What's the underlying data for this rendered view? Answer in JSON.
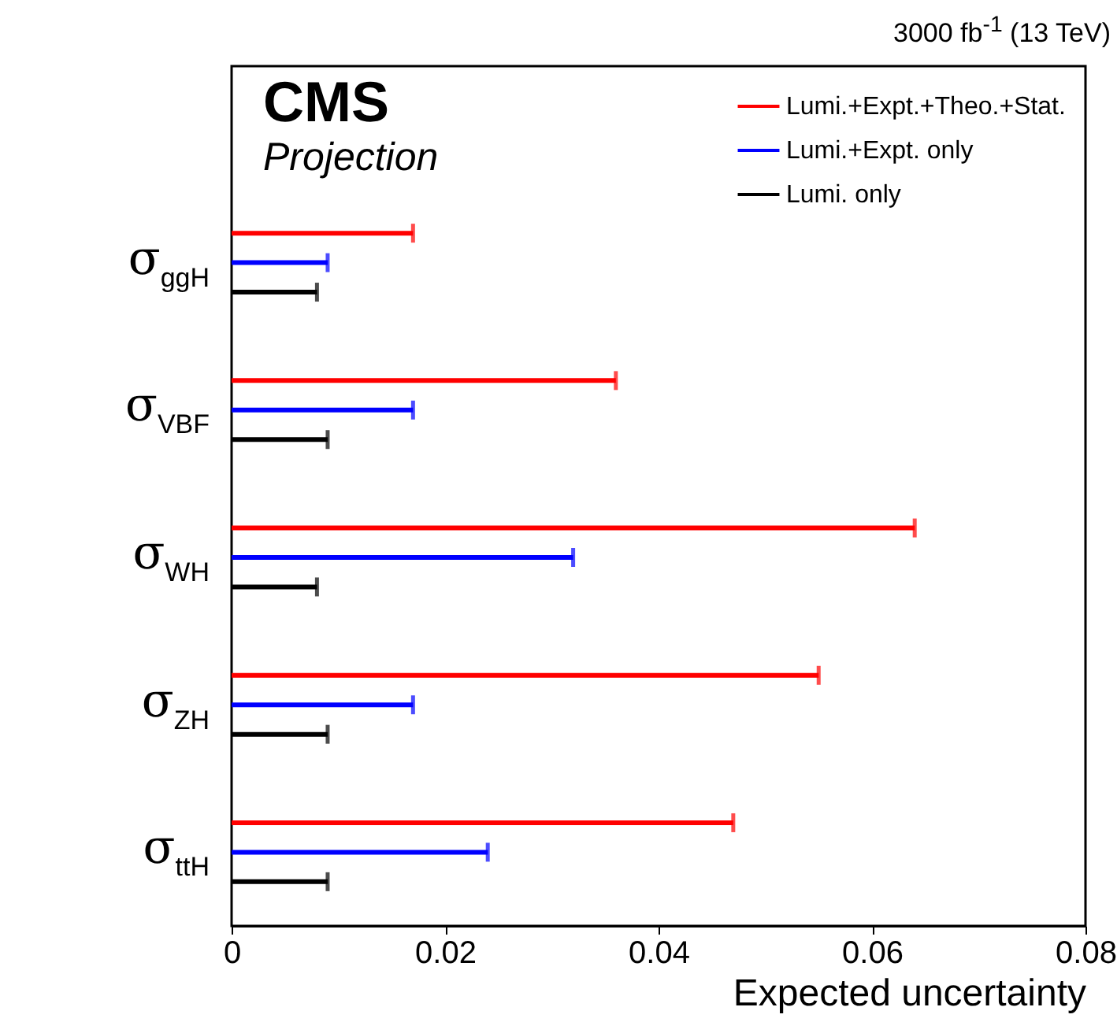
{
  "chart_data": {
    "type": "bar",
    "orientation": "horizontal",
    "title": "3000 fb$^{-1}$ (13 TeV)",
    "xlabel": "Expected uncertainty",
    "annotations": [
      "CMS",
      "Projection"
    ],
    "categories": [
      "σ$_{ggH}$",
      "σ$_{VBF}$",
      "σ$_{WH}$",
      "σ$_{ZH}$",
      "σ$_{ttH}$"
    ],
    "series": [
      {
        "name": "Lumi.+Expt.+Theo.+Stat.",
        "color": "#ff0000",
        "values": [
          0.017,
          0.036,
          0.064,
          0.055,
          0.047
        ]
      },
      {
        "name": "Lumi.+Expt. only",
        "color": "#0000ff",
        "values": [
          0.009,
          0.017,
          0.032,
          0.017,
          0.024
        ]
      },
      {
        "name": "Lumi. only",
        "color": "#000000",
        "values": [
          0.008,
          0.009,
          0.008,
          0.009,
          0.009
        ]
      }
    ],
    "xlim": [
      0,
      0.08
    ],
    "xticks": [
      0,
      0.02,
      0.04,
      0.06,
      0.08
    ],
    "legend": "top right",
    "grid": false
  }
}
